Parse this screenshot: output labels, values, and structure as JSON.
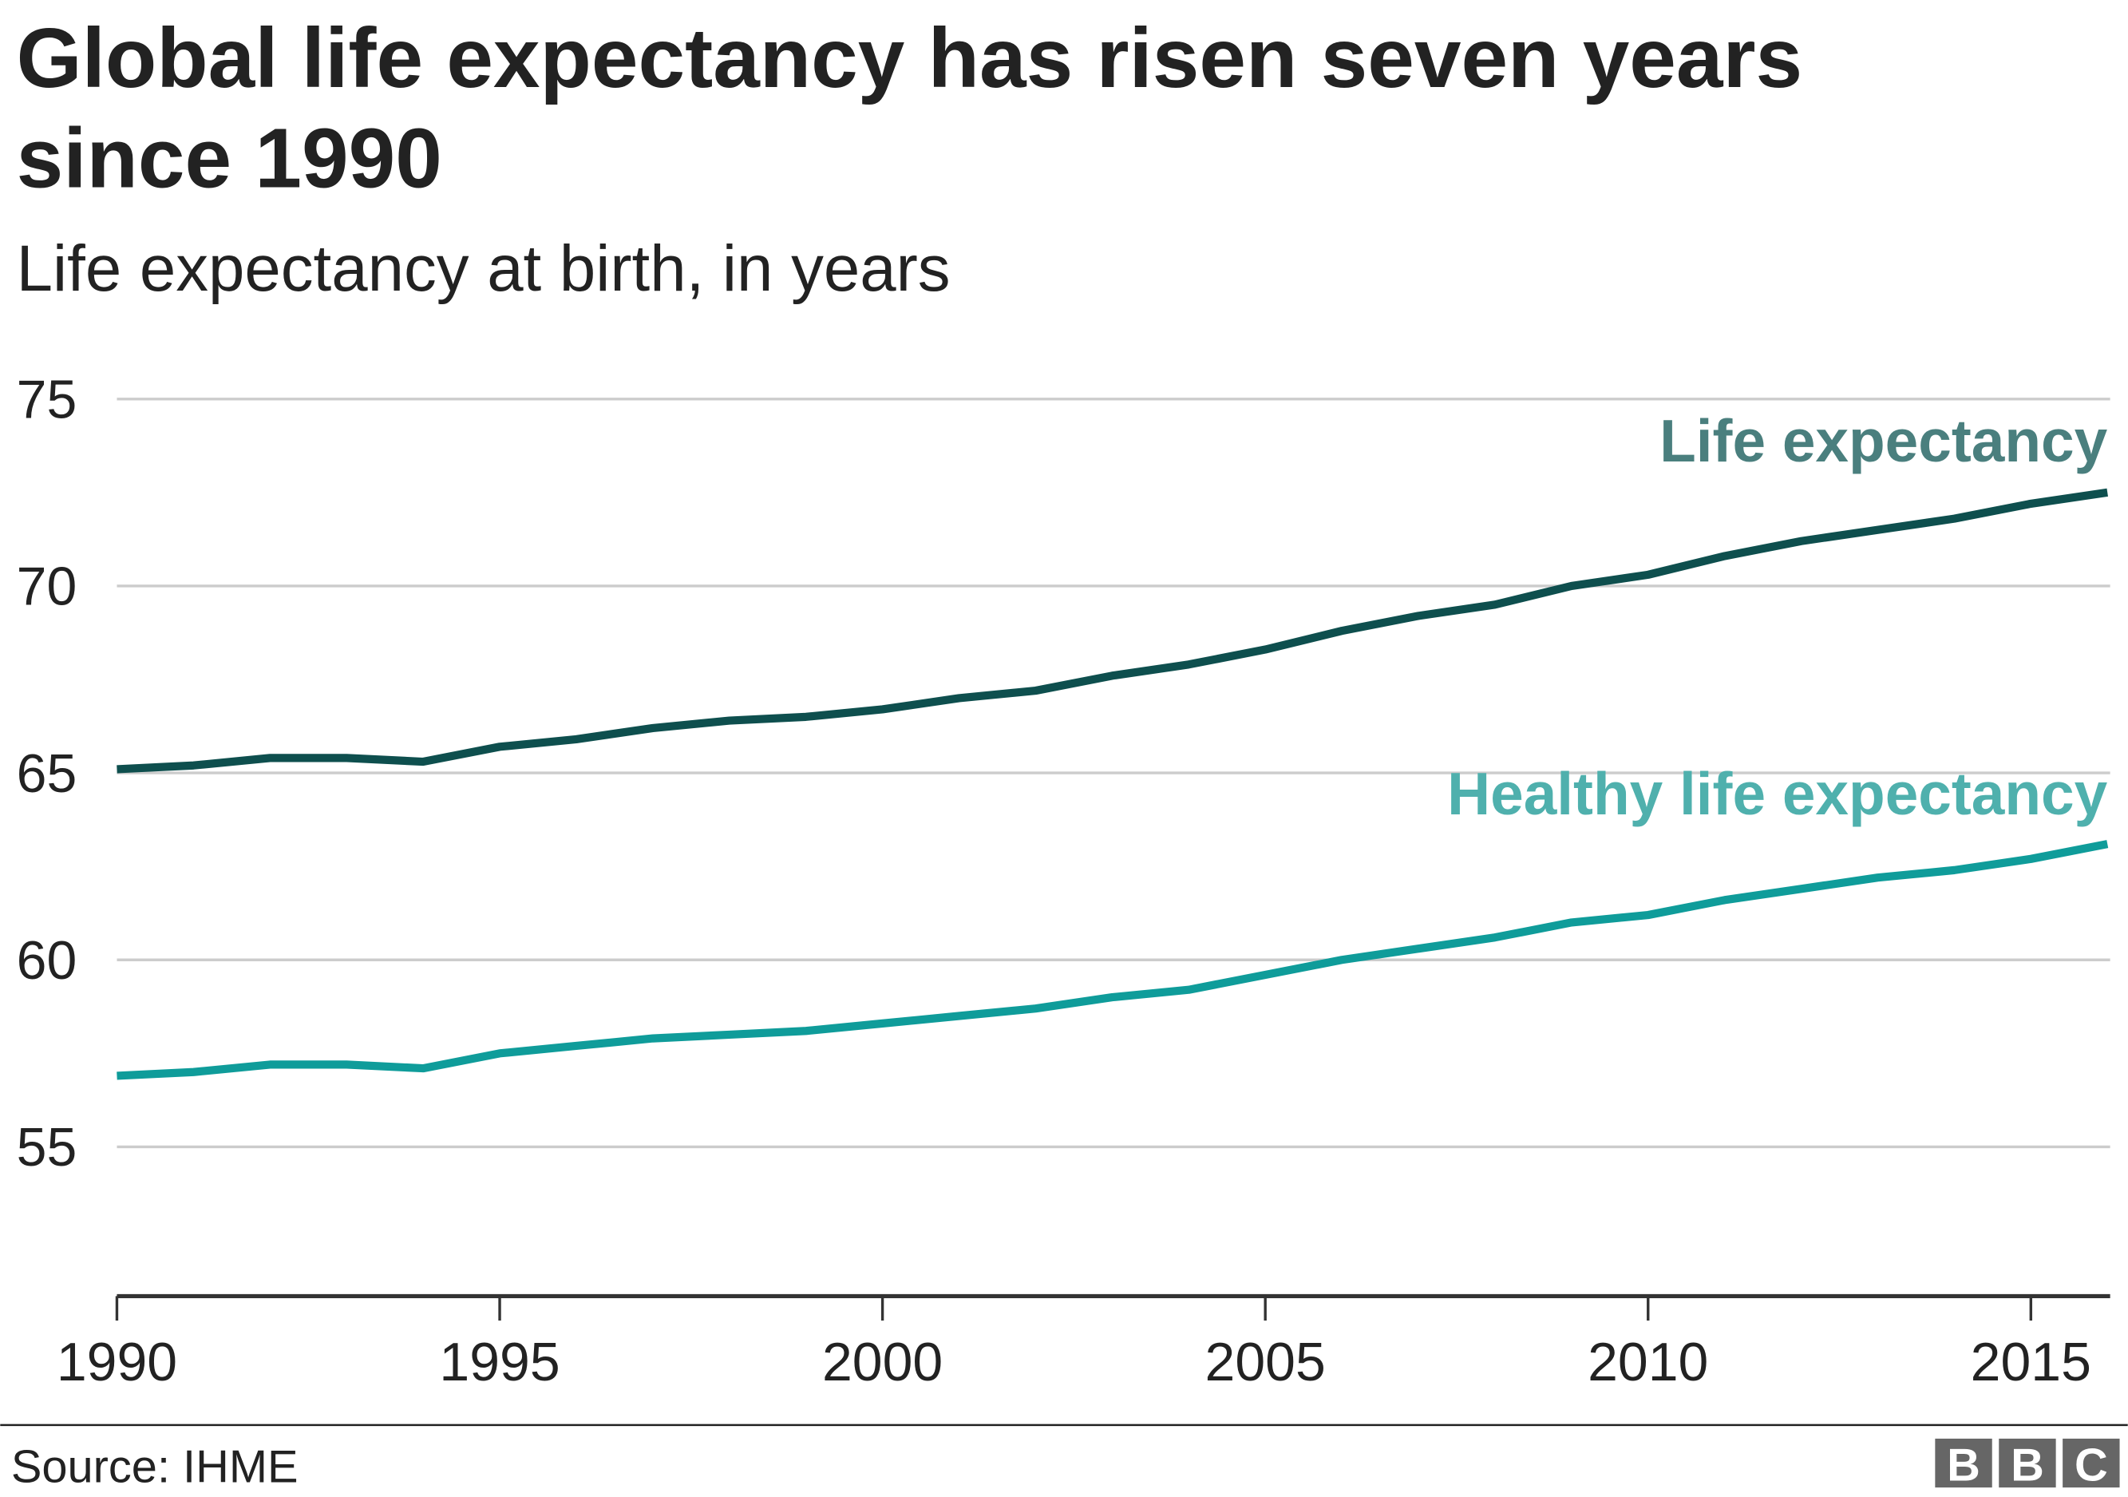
{
  "chart_data": {
    "type": "line",
    "title": "Global life expectancy has risen seven years since 1990",
    "title_lines": [
      "Global life expectancy has risen seven years",
      "since 1990"
    ],
    "subtitle": "Life expectancy at birth, in years",
    "xlabel": "",
    "ylabel": "",
    "x": [
      1990,
      1991,
      1992,
      1993,
      1994,
      1995,
      1996,
      1997,
      1998,
      1999,
      2000,
      2001,
      2002,
      2003,
      2004,
      2005,
      2006,
      2007,
      2008,
      2009,
      2010,
      2011,
      2012,
      2013,
      2014,
      2015,
      2016
    ],
    "xlim": [
      1990,
      2016
    ],
    "ylim": [
      51,
      75
    ],
    "xticks": [
      "1990",
      "1995",
      "2000",
      "2005",
      "2010",
      "2015"
    ],
    "yticks": [
      "55",
      "60",
      "65",
      "70",
      "75"
    ],
    "grid": "horizontal",
    "legend": "direct labels at right end of lines",
    "series": [
      {
        "name": "Life expectancy",
        "color": "#0e4f4e",
        "label_color": "#4a7f7e",
        "values": [
          65.1,
          65.2,
          65.4,
          65.4,
          65.3,
          65.7,
          65.9,
          66.2,
          66.4,
          66.5,
          66.7,
          67.0,
          67.2,
          67.6,
          67.9,
          68.3,
          68.8,
          69.2,
          69.5,
          70.0,
          70.3,
          70.8,
          71.2,
          71.5,
          71.8,
          72.2,
          72.5
        ]
      },
      {
        "name": "Healthy life expectancy",
        "color": "#0f9c9a",
        "label_color": "#4fb0ad",
        "values": [
          56.9,
          57.0,
          57.2,
          57.2,
          57.1,
          57.5,
          57.7,
          57.9,
          58.0,
          58.1,
          58.3,
          58.5,
          58.7,
          59.0,
          59.2,
          59.6,
          60.0,
          60.3,
          60.6,
          61.0,
          61.2,
          61.6,
          61.9,
          62.2,
          62.4,
          62.7,
          63.1
        ]
      }
    ]
  },
  "footer": {
    "source": "Source: IHME",
    "logo": [
      "B",
      "B",
      "C"
    ]
  }
}
